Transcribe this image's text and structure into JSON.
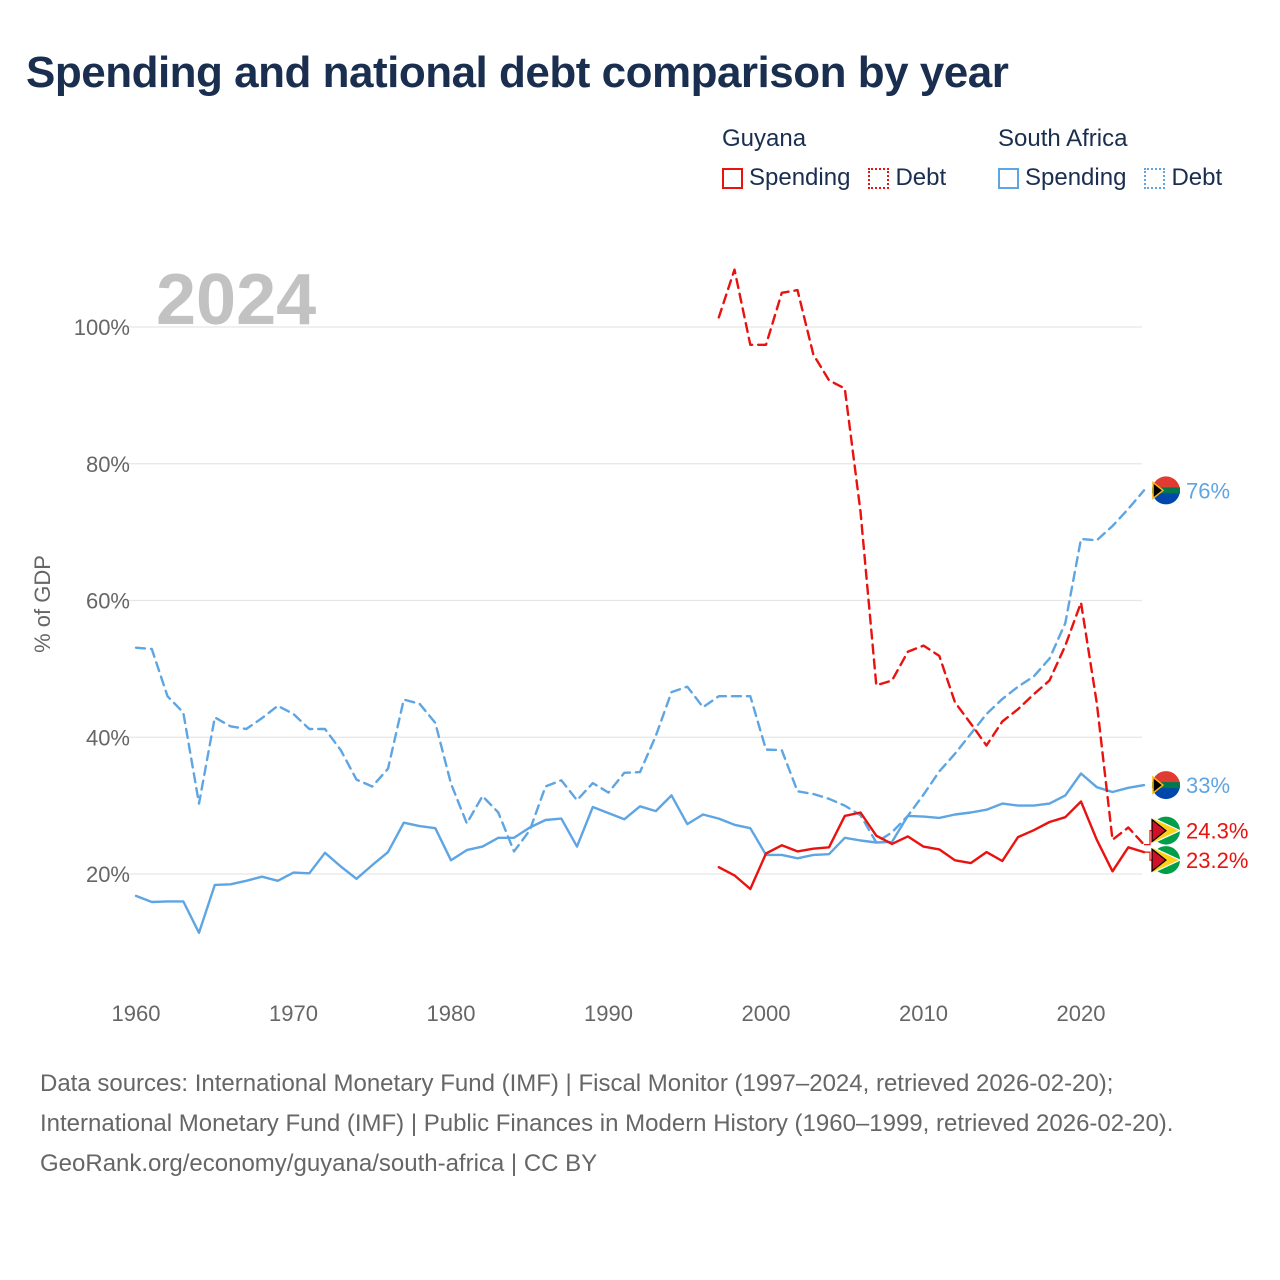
{
  "title": "Spending and national debt comparison by year",
  "legend": {
    "groups": [
      {
        "name": "Guyana",
        "color": "#e8130f",
        "items": [
          {
            "label": "Spending",
            "style": "solid"
          },
          {
            "label": "Debt",
            "style": "dotted"
          }
        ]
      },
      {
        "name": "South Africa",
        "color": "#5ea5e3",
        "items": [
          {
            "label": "Spending",
            "style": "solid"
          },
          {
            "label": "Debt",
            "style": "dotted"
          }
        ]
      }
    ]
  },
  "footer": {
    "sources": "Data sources: International Monetary Fund (IMF) | Fiscal Monitor (1997–2024, retrieved 2026-02-20); International Monetary Fund (IMF) | Public Finances in Modern History (1960–1999, retrieved 2026-02-20).",
    "credit": "GeoRank.org/economy/guyana/south-africa | CC BY"
  },
  "chart_data": {
    "type": "line",
    "title": "Spending and national debt comparison by year",
    "year_label": "2024",
    "ylabel": "% of GDP",
    "xlabel": "",
    "xlim": [
      1960,
      2024
    ],
    "ylim": [
      8,
      110
    ],
    "x_ticks": [
      1960,
      1970,
      1980,
      1990,
      2000,
      2010,
      2020
    ],
    "y_ticks": [
      20,
      40,
      60,
      80,
      100
    ],
    "y_tick_labels": [
      "20%",
      "40%",
      "60%",
      "80%",
      "100%"
    ],
    "grid": true,
    "series": [
      {
        "id": "za-spending",
        "name": "South Africa Spending",
        "country": "South Africa",
        "color": "#5ea5e3",
        "style": "solid",
        "start": 1960,
        "values": [
          16.8,
          15.9,
          16.0,
          16.0,
          11.4,
          18.4,
          18.5,
          19.0,
          19.6,
          19.0,
          20.2,
          20.1,
          23.1,
          21.1,
          19.3,
          21.3,
          23.2,
          27.5,
          27.0,
          26.7,
          22.0,
          23.5,
          24.0,
          25.3,
          25.3,
          26.8,
          27.9,
          28.1,
          24.0,
          29.8,
          28.9,
          28.0,
          29.9,
          29.2,
          31.5,
          27.3,
          28.7,
          28.1,
          27.2,
          26.7,
          22.8,
          22.8,
          22.3,
          22.8,
          22.9,
          25.3,
          24.9,
          24.6,
          24.7,
          28.5,
          28.4,
          28.2,
          28.7,
          29.0,
          29.4,
          30.3,
          30.0,
          30.0,
          30.3,
          31.5,
          34.7,
          32.7,
          32.0,
          32.6,
          33.0
        ],
        "end_label": "33%"
      },
      {
        "id": "za-debt",
        "name": "South Africa Debt",
        "country": "South Africa",
        "color": "#5ea5e3",
        "style": "dashed",
        "start": 1960,
        "values": [
          53.1,
          52.9,
          46.0,
          43.6,
          30.3,
          42.9,
          41.6,
          41.2,
          42.8,
          44.6,
          43.4,
          41.2,
          41.2,
          38.1,
          33.8,
          32.8,
          35.4,
          45.5,
          44.9,
          42.1,
          33.2,
          27.4,
          31.4,
          29.0,
          23.3,
          26.4,
          32.8,
          33.7,
          30.8,
          33.3,
          31.9,
          34.8,
          34.9,
          40.2,
          46.6,
          47.4,
          44.4,
          46.0,
          46.0,
          46.0,
          38.2,
          38.1,
          32.1,
          31.7,
          31.0,
          30.0,
          28.6,
          24.6,
          26.1,
          28.5,
          31.6,
          35.0,
          37.6,
          40.5,
          43.4,
          45.6,
          47.4,
          48.9,
          51.5,
          56.7,
          69.0,
          68.8,
          70.9,
          73.4,
          76.1
        ],
        "end_label": "76%"
      },
      {
        "id": "gy-spending",
        "name": "Guyana Spending",
        "country": "Guyana",
        "color": "#e8130f",
        "style": "solid",
        "start": 1997,
        "values": [
          21.0,
          19.8,
          17.8,
          23.0,
          24.2,
          23.3,
          23.7,
          23.9,
          28.5,
          29.0,
          25.6,
          24.4,
          25.5,
          24.0,
          23.6,
          22.0,
          21.6,
          23.2,
          21.9,
          25.4,
          26.4,
          27.6,
          28.3,
          30.6,
          25.0,
          20.4,
          23.9,
          23.2
        ],
        "end_label": "23.2%"
      },
      {
        "id": "gy-debt",
        "name": "Guyana Debt",
        "country": "Guyana",
        "color": "#e8130f",
        "style": "dashed",
        "start": 1997,
        "values": [
          101.4,
          108.4,
          97.4,
          97.4,
          105.0,
          105.4,
          96.0,
          92.2,
          91.0,
          73.0,
          47.6,
          48.3,
          52.5,
          53.4,
          51.9,
          45.1,
          42.0,
          38.8,
          42.3,
          44.1,
          46.3,
          48.3,
          53.4,
          59.7,
          45.0,
          25.0,
          26.8,
          24.3
        ],
        "end_label": "24.3%"
      }
    ]
  }
}
